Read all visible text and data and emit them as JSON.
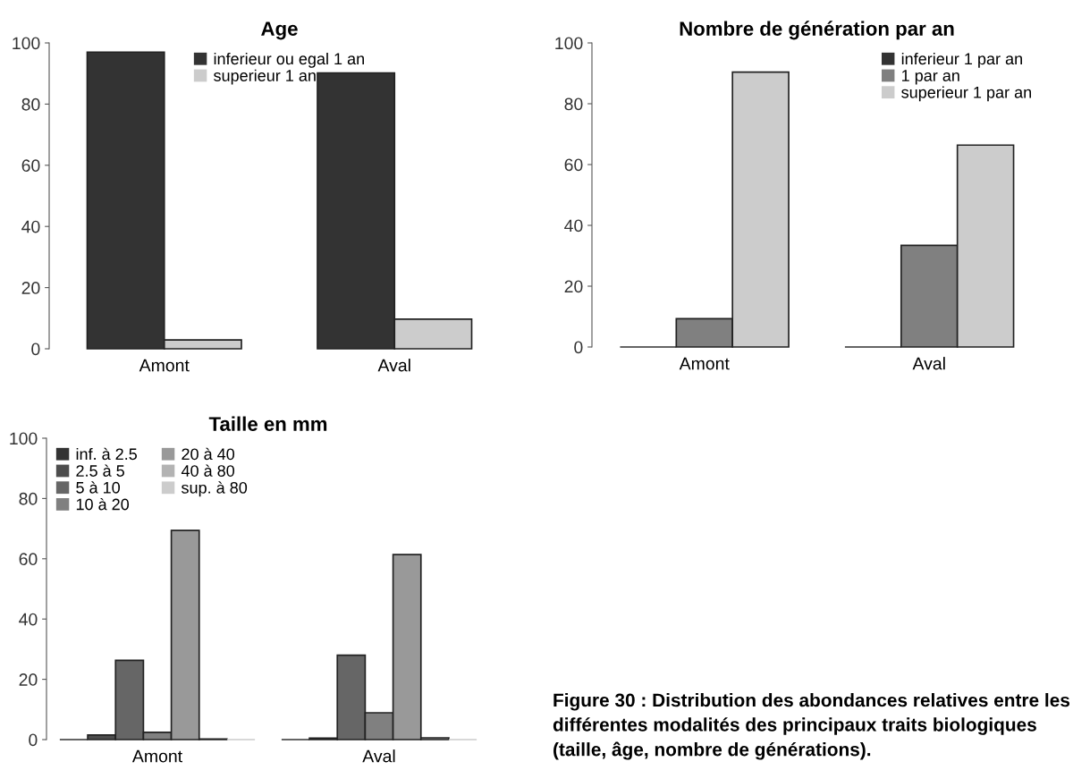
{
  "chart_data": [
    {
      "type": "bar",
      "title": "Age",
      "categories": [
        "Amont",
        "Aval"
      ],
      "ylim": [
        0,
        100
      ],
      "yticks": [
        0,
        20,
        40,
        60,
        80,
        100
      ],
      "grid": false,
      "legend": "top",
      "series": [
        {
          "name": "inferieur ou egal 1 an",
          "color": "#333333",
          "values": [
            97.0,
            90.2
          ]
        },
        {
          "name": "superieur 1 an",
          "color": "#cccccc",
          "values": [
            2.9,
            9.7
          ]
        }
      ]
    },
    {
      "type": "bar",
      "title": "Nombre de génération par an",
      "categories": [
        "Amont",
        "Aval"
      ],
      "ylim": [
        0,
        100
      ],
      "yticks": [
        0,
        20,
        40,
        60,
        80,
        100
      ],
      "grid": false,
      "legend": "top right",
      "series": [
        {
          "name": "inferieur 1 par an",
          "color": "#333333",
          "values": [
            0,
            0
          ]
        },
        {
          "name": "1 par an",
          "color": "#808080",
          "values": [
            9.3,
            33.4
          ]
        },
        {
          "name": "superieur 1 par an",
          "color": "#cccccc",
          "values": [
            90.4,
            66.4
          ]
        }
      ]
    },
    {
      "type": "bar",
      "title": "Taille en mm",
      "categories": [
        "Amont",
        "Aval"
      ],
      "ylim": [
        0,
        100
      ],
      "yticks": [
        0,
        20,
        40,
        60,
        80,
        100
      ],
      "grid": false,
      "legend": "top left",
      "annotations": [
        "Figure 30 : Distribution des abondances relatives entre les différentes modalités des principaux traits biologiques (taille, âge, nombre de générations)."
      ],
      "series": [
        {
          "name": "inf. à 2.5",
          "color": "#333333",
          "values": [
            0,
            0
          ]
        },
        {
          "name": "2.5 à 5",
          "color": "#4d4d4d",
          "values": [
            1.5,
            0.5
          ]
        },
        {
          "name": "5 à 10",
          "color": "#666666",
          "values": [
            26.3,
            28.0
          ]
        },
        {
          "name": "10 à 20",
          "color": "#808080",
          "values": [
            2.4,
            8.9
          ]
        },
        {
          "name": "20 à 40",
          "color": "#999999",
          "values": [
            69.4,
            61.4
          ]
        },
        {
          "name": "40 à 80",
          "color": "#b3b3b3",
          "values": [
            0.2,
            0.6
          ]
        },
        {
          "name": "sup. à 80",
          "color": "#cccccc",
          "values": [
            0,
            0
          ]
        }
      ]
    }
  ]
}
